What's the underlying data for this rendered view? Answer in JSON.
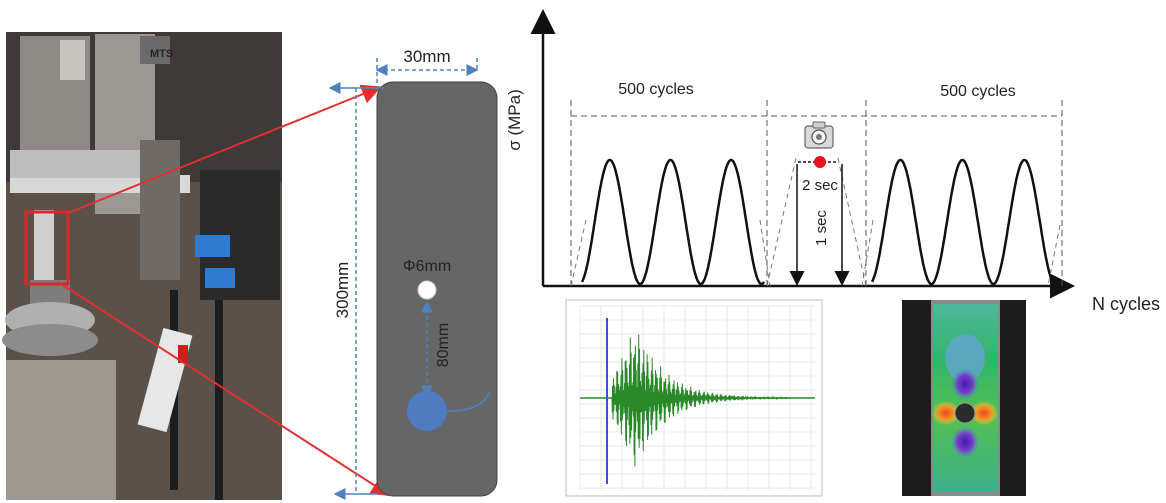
{
  "specimen": {
    "width_label": "30mm",
    "length_label": "300mm",
    "hole_label": "Φ6mm",
    "spacing_label": "80mm"
  },
  "loading_diagram": {
    "y_axis_label": "σ (MPa)",
    "x_axis_label": "N cycles",
    "block_left_label": "500 cycles",
    "block_right_label": "500 cycles",
    "hold_label": "2 sec",
    "ramp_label": "1 sec"
  },
  "photo": {
    "machine_brand": "MTS"
  },
  "colors": {
    "specimen_fill": "#666666",
    "dimension_line": "#4f81bd",
    "callout_arrow": "#e03030",
    "capture_point": "#e8131b",
    "hole_large": "#4e7cc0",
    "waveform": "#2a8a2a",
    "trigger_line": "#3355dd"
  },
  "icons": {
    "camera": "camera-icon"
  }
}
